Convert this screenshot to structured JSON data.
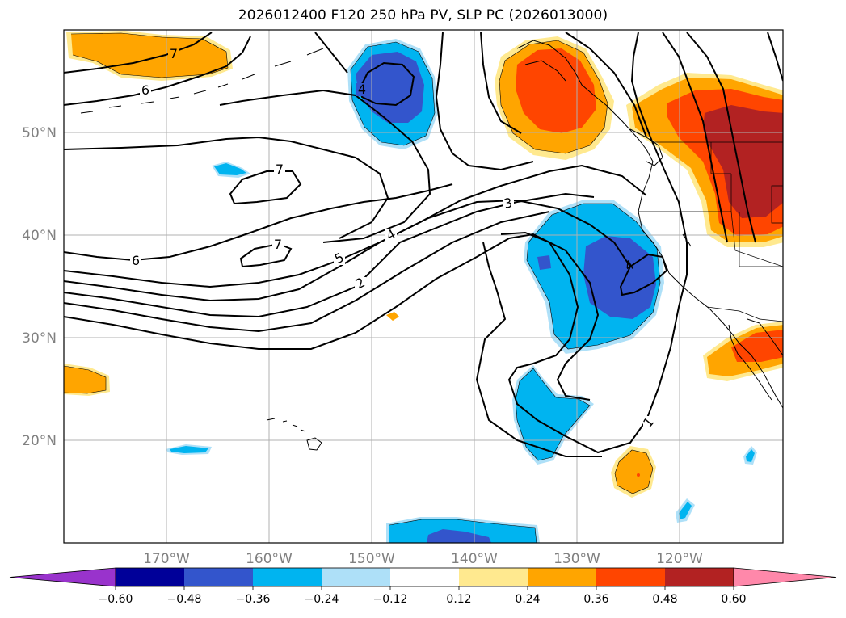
{
  "title": "2026012400 F120 250 hPa PV, SLP PC (2026013000)",
  "map": {
    "projection": "lat-lon",
    "lon_range": [
      "180",
      "110°W"
    ],
    "lat_range": [
      "10°N",
      "60°N"
    ],
    "lon_labels": [
      "170°W",
      "160°W",
      "150°W",
      "140°W",
      "130°W",
      "120°W"
    ],
    "lat_labels": [
      "50°N",
      "40°N",
      "30°N",
      "20°N"
    ],
    "contour_labels": [
      "7",
      "6",
      "4",
      "7",
      "7",
      "6",
      "5",
      "4",
      "3",
      "2",
      "4",
      "1"
    ]
  },
  "colorbar": {
    "ticks": [
      "−0.60",
      "−0.48",
      "−0.36",
      "−0.24",
      "−0.12",
      "0.12",
      "0.24",
      "0.36",
      "0.48",
      "0.60"
    ],
    "colors": [
      "#9933cc",
      "#000099",
      "#3355cc",
      "#00b4f0",
      "#aee0f8",
      "#ffffff",
      "#ffe98f",
      "#ffa500",
      "#ff4500",
      "#b22222",
      "#ff88aa"
    ]
  }
}
